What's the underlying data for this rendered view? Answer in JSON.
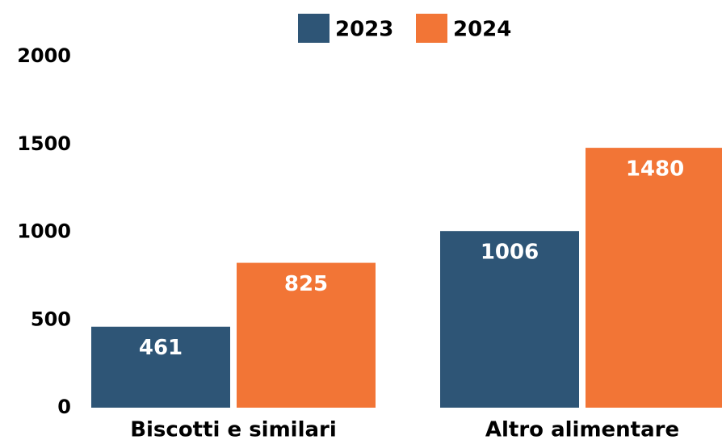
{
  "chart_data": {
    "type": "bar",
    "categories": [
      "Biscotti e similari",
      "Altro alimentare"
    ],
    "series": [
      {
        "name": "2023",
        "color": "#2e5576",
        "values": [
          461,
          1006
        ]
      },
      {
        "name": "2024",
        "color": "#f27536",
        "values": [
          825,
          1480
        ]
      }
    ],
    "ylim": [
      0,
      2000
    ],
    "yticks": [
      0,
      500,
      1000,
      1500,
      2000
    ],
    "grid": false,
    "legend": "top"
  }
}
